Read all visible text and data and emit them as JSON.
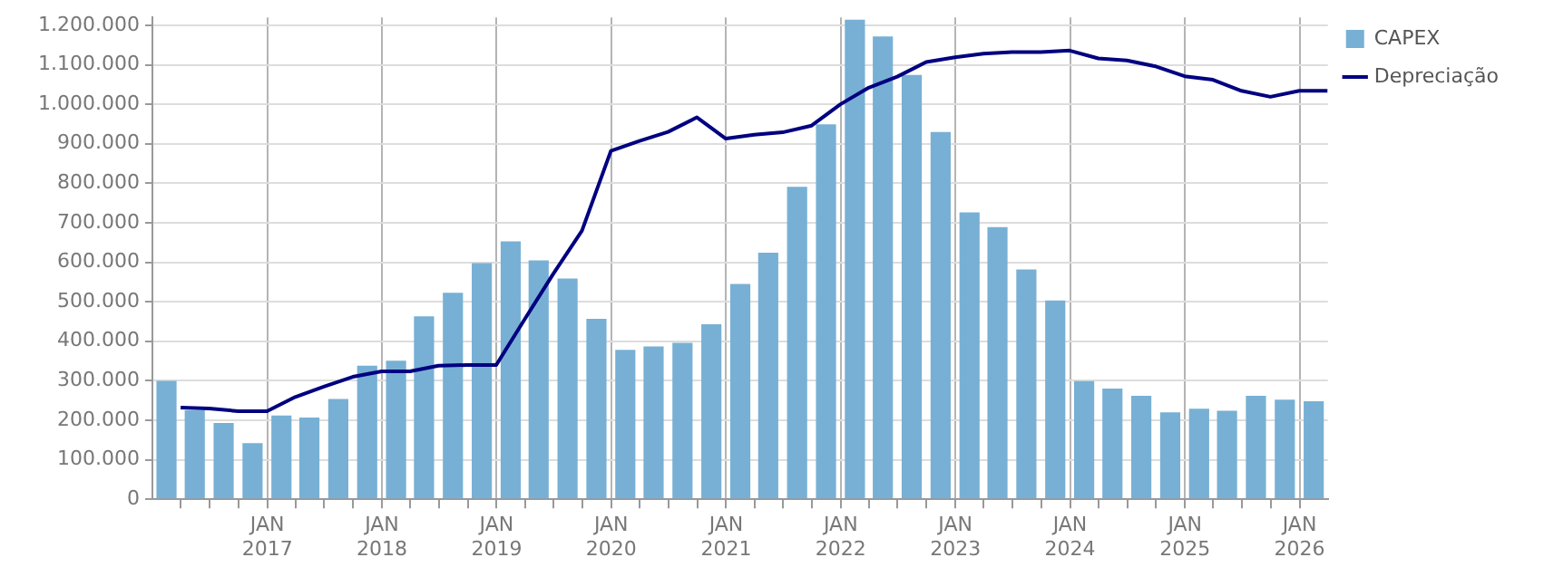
{
  "chart_data": {
    "type": "bar",
    "xlim": [
      "2016-01-01",
      "2026-04-01"
    ],
    "ylim": [
      0,
      1220000
    ],
    "xticks": [
      {
        "value": "2016-04-01",
        "label": null
      },
      {
        "value": "2016-07-01",
        "label": null
      },
      {
        "value": "2016-10-01",
        "label": null
      },
      {
        "value": "2017-01-01",
        "label": "JAN\n2017"
      },
      {
        "value": "2017-04-01",
        "label": null
      },
      {
        "value": "2017-07-01",
        "label": null
      },
      {
        "value": "2017-10-01",
        "label": null
      },
      {
        "value": "2018-01-01",
        "label": "JAN\n2018"
      },
      {
        "value": "2018-04-01",
        "label": null
      },
      {
        "value": "2018-07-01",
        "label": null
      },
      {
        "value": "2018-10-01",
        "label": null
      },
      {
        "value": "2019-01-01",
        "label": "JAN\n2019"
      },
      {
        "value": "2019-04-01",
        "label": null
      },
      {
        "value": "2019-07-01",
        "label": null
      },
      {
        "value": "2019-10-01",
        "label": null
      },
      {
        "value": "2020-01-01",
        "label": "JAN\n2020"
      },
      {
        "value": "2020-04-01",
        "label": null
      },
      {
        "value": "2020-07-01",
        "label": null
      },
      {
        "value": "2020-10-01",
        "label": null
      },
      {
        "value": "2021-01-01",
        "label": "JAN\n2021"
      },
      {
        "value": "2021-04-01",
        "label": null
      },
      {
        "value": "2021-07-01",
        "label": null
      },
      {
        "value": "2021-10-01",
        "label": null
      },
      {
        "value": "2022-01-01",
        "label": "JAN\n2022"
      },
      {
        "value": "2022-04-01",
        "label": null
      },
      {
        "value": "2022-07-01",
        "label": null
      },
      {
        "value": "2022-10-01",
        "label": null
      },
      {
        "value": "2023-01-01",
        "label": "JAN\n2023"
      },
      {
        "value": "2023-04-01",
        "label": null
      },
      {
        "value": "2023-07-01",
        "label": null
      },
      {
        "value": "2023-10-01",
        "label": null
      },
      {
        "value": "2024-01-01",
        "label": "JAN\n2024"
      },
      {
        "value": "2024-04-01",
        "label": null
      },
      {
        "value": "2024-07-01",
        "label": null
      },
      {
        "value": "2024-10-01",
        "label": null
      },
      {
        "value": "2025-01-01",
        "label": "JAN\n2025"
      },
      {
        "value": "2025-04-01",
        "label": null
      },
      {
        "value": "2025-07-01",
        "label": null
      },
      {
        "value": "2025-10-01",
        "label": null
      },
      {
        "value": "2026-01-01",
        "label": "JAN\n2026"
      }
    ],
    "yticks": [
      {
        "value": 0,
        "label": "0"
      },
      {
        "value": 100000,
        "label": "100.000"
      },
      {
        "value": 200000,
        "label": "200.000"
      },
      {
        "value": 300000,
        "label": "300.000"
      },
      {
        "value": 400000,
        "label": "400.000"
      },
      {
        "value": 500000,
        "label": "500.000"
      },
      {
        "value": 600000,
        "label": "600.000"
      },
      {
        "value": 700000,
        "label": "700.000"
      },
      {
        "value": 800000,
        "label": "800.000"
      },
      {
        "value": 900000,
        "label": "900.000"
      },
      {
        "value": 1000000,
        "label": "1.000.000"
      },
      {
        "value": 1100000,
        "label": "1.100.000"
      },
      {
        "value": 1200000,
        "label": "1.200.000"
      }
    ],
    "grid": true,
    "legend": "top right",
    "series": [
      {
        "name": "CAPEX",
        "color": "#77b0d4",
        "x": [
          "2016-02-15",
          "2016-05-15",
          "2016-08-15",
          "2016-11-15",
          "2017-02-15",
          "2017-05-15",
          "2017-08-15",
          "2017-11-15",
          "2018-02-15",
          "2018-05-15",
          "2018-08-15",
          "2018-11-15",
          "2019-02-15",
          "2019-05-15",
          "2019-08-15",
          "2019-11-15",
          "2020-02-15",
          "2020-05-15",
          "2020-08-15",
          "2020-11-15",
          "2021-02-15",
          "2021-05-15",
          "2021-08-15",
          "2021-11-15",
          "2022-02-15",
          "2022-05-15",
          "2022-08-15",
          "2022-11-15",
          "2023-02-15",
          "2023-05-15",
          "2023-08-15",
          "2023-11-15",
          "2024-02-15",
          "2024-05-15",
          "2024-08-15",
          "2024-11-15",
          "2025-02-15",
          "2025-05-15",
          "2025-08-15",
          "2025-11-15",
          "2026-02-15"
        ],
        "values": [
          300000,
          225000,
          193000,
          142000,
          212000,
          207000,
          254000,
          338000,
          351000,
          463000,
          523000,
          598000,
          653000,
          605000,
          559000,
          457000,
          378000,
          387000,
          396000,
          443000,
          545000,
          624000,
          791000,
          949000,
          1214000,
          1172000,
          1074000,
          930000,
          726000,
          689000,
          582000,
          503000,
          299000,
          280000,
          262000,
          220000,
          229000,
          224000,
          262000,
          252000,
          248000
        ]
      },
      {
        "name": "Depreciação",
        "type": "line",
        "color": "#000080",
        "x": [
          "2016-03-31",
          "2016-06-30",
          "2016-09-30",
          "2016-12-31",
          "2017-03-31",
          "2017-06-30",
          "2017-09-30",
          "2017-12-31",
          "2018-03-31",
          "2018-06-30",
          "2018-09-30",
          "2018-12-31",
          "2019-03-31",
          "2019-06-30",
          "2019-09-30",
          "2019-12-31",
          "2020-03-31",
          "2020-06-30",
          "2020-09-30",
          "2020-12-31",
          "2021-03-31",
          "2021-06-30",
          "2021-09-30",
          "2021-12-31",
          "2022-03-31",
          "2022-06-30",
          "2022-09-30",
          "2022-12-31",
          "2023-03-31",
          "2023-06-30",
          "2023-09-30",
          "2023-12-31",
          "2024-03-31",
          "2024-06-30",
          "2024-09-30",
          "2024-12-31",
          "2025-03-31",
          "2025-06-30",
          "2025-09-30",
          "2025-12-31",
          "2026-03-31"
        ],
        "values": [
          232000,
          230000,
          223000,
          223000,
          259000,
          285000,
          310000,
          324000,
          324000,
          338000,
          340000,
          340000,
          455000,
          570000,
          680000,
          882000,
          907000,
          930000,
          967000,
          913000,
          923000,
          929000,
          946000,
          1000000,
          1042000,
          1070000,
          1107000,
          1119000,
          1128000,
          1132000,
          1132000,
          1136000,
          1116000,
          1111000,
          1096000,
          1071000,
          1062000,
          1034000,
          1019000,
          1034000,
          1034000
        ]
      }
    ]
  }
}
